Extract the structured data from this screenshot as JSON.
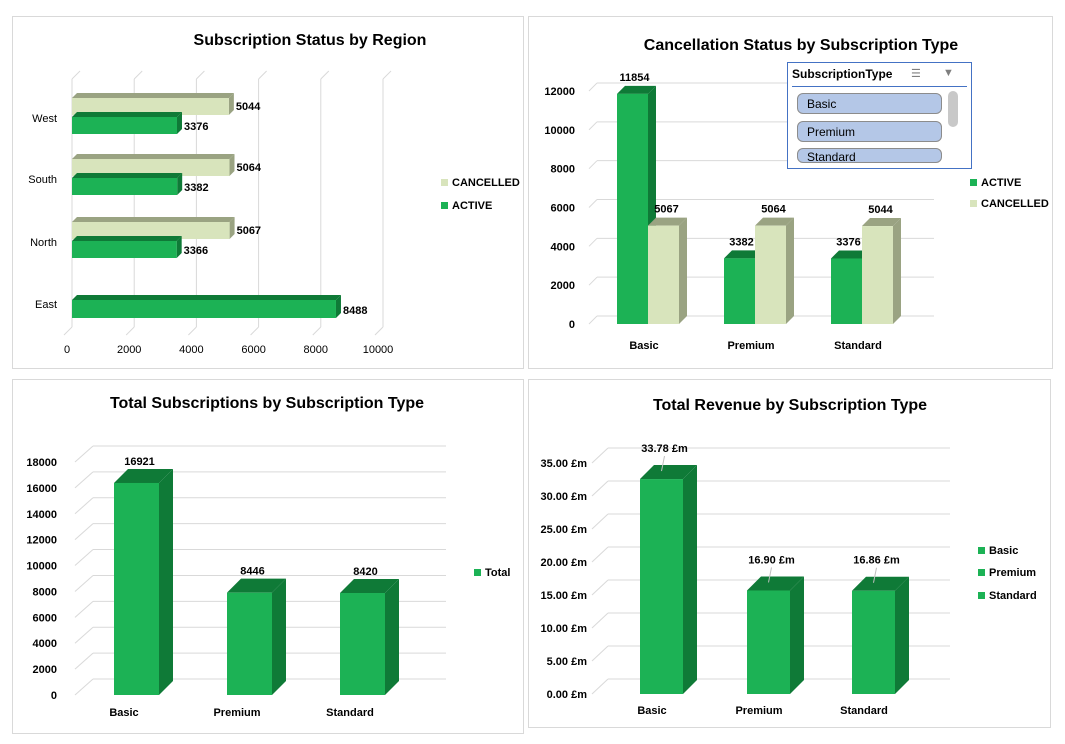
{
  "colors": {
    "active": "#1cb255",
    "active_dark": "#0f7a37",
    "cancelled": "#d8e4bc",
    "cancelled_dark": "#9aa382",
    "grid": "#d9d9d9"
  },
  "slicer": {
    "title": "SubscriptionType",
    "icons": [
      "multi-select-icon",
      "clear-filter-icon"
    ],
    "items": [
      "Basic",
      "Premium",
      "Standard"
    ]
  },
  "chart_data": [
    {
      "type": "bar",
      "orientation": "horizontal",
      "title": "Subscription Status by Region",
      "categories": [
        "East",
        "North",
        "South",
        "West"
      ],
      "series": [
        {
          "name": "ACTIVE",
          "values": [
            8488,
            3366,
            3382,
            3376
          ]
        },
        {
          "name": "CANCELLED",
          "values": [
            null,
            5067,
            5064,
            5044
          ]
        }
      ],
      "data_labels": {
        "ACTIVE": [
          "8488",
          "3366",
          "3382",
          "3376"
        ],
        "CANCELLED": [
          "",
          "5067",
          "5064",
          "5044"
        ]
      },
      "xlim": [
        0,
        10000
      ],
      "ticks": [
        "0",
        "2000",
        "4000",
        "6000",
        "8000",
        "10000"
      ],
      "legend": [
        "CANCELLED",
        "ACTIVE"
      ],
      "legend_position": "right"
    },
    {
      "type": "bar",
      "title": "Cancellation Status by Subscription Type",
      "categories": [
        "Basic",
        "Premium",
        "Standard"
      ],
      "series": [
        {
          "name": "ACTIVE",
          "values": [
            11854,
            3382,
            3376
          ]
        },
        {
          "name": "CANCELLED",
          "values": [
            5067,
            5064,
            5044
          ]
        }
      ],
      "data_labels": {
        "ACTIVE": [
          "11854",
          "3382",
          "3376"
        ],
        "CANCELLED": [
          "5067",
          "5064",
          "5044"
        ]
      },
      "ylim": [
        0,
        12000
      ],
      "ticks": [
        "0",
        "2000",
        "4000",
        "6000",
        "8000",
        "10000",
        "12000"
      ],
      "legend": [
        "ACTIVE",
        "CANCELLED"
      ],
      "legend_position": "right"
    },
    {
      "type": "bar",
      "title": "Total Subscriptions by Subscription Type",
      "categories": [
        "Basic",
        "Premium",
        "Standard"
      ],
      "series": [
        {
          "name": "Total",
          "values": [
            16921,
            8446,
            8420
          ]
        }
      ],
      "data_labels": [
        "16921",
        "8446",
        "8420"
      ],
      "ylim": [
        0,
        18000
      ],
      "ticks": [
        "0",
        "2000",
        "4000",
        "6000",
        "8000",
        "10000",
        "12000",
        "14000",
        "16000",
        "18000"
      ],
      "legend": [
        "Total"
      ],
      "legend_position": "right"
    },
    {
      "type": "bar",
      "title": "Total Revenue by Subscription Type",
      "categories": [
        "Basic",
        "Premium",
        "Standard"
      ],
      "values": [
        33.78,
        16.9,
        16.86
      ],
      "unit": "£m",
      "data_labels": [
        "33.78 £m",
        "16.90 £m",
        "16.86 £m"
      ],
      "ylim": [
        0,
        35
      ],
      "ticks": [
        "0.00 £m",
        "5.00 £m",
        "10.00 £m",
        "15.00 £m",
        "20.00 £m",
        "25.00 £m",
        "30.00 £m",
        "35.00 £m"
      ],
      "legend": [
        "Basic",
        "Premium",
        "Standard"
      ],
      "legend_position": "right"
    }
  ]
}
